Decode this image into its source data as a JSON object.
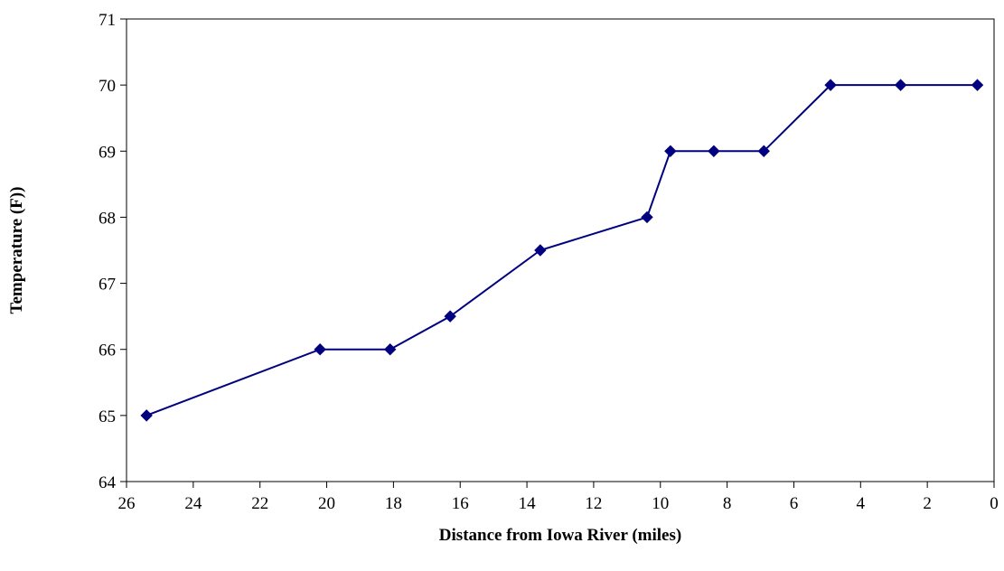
{
  "chart_data": {
    "type": "line",
    "xlabel": "Distance from Iowa River (miles)",
    "ylabel": "Temperature (F))",
    "xlim": [
      26,
      0
    ],
    "ylim": [
      64,
      71
    ],
    "x_ticks": [
      26,
      24,
      22,
      20,
      18,
      16,
      14,
      12,
      10,
      8,
      6,
      4,
      2,
      0
    ],
    "y_ticks": [
      64,
      65,
      66,
      67,
      68,
      69,
      70,
      71
    ],
    "grid": false,
    "legend": "none",
    "series": [
      {
        "color": "#000080",
        "marker": "diamond",
        "x": [
          25.4,
          20.2,
          18.1,
          16.3,
          13.6,
          10.4,
          9.7,
          8.4,
          6.9,
          4.9,
          2.8,
          0.5
        ],
        "y": [
          65,
          66,
          66,
          66.5,
          67.5,
          68,
          69,
          69,
          69,
          70,
          70,
          70
        ]
      }
    ]
  }
}
